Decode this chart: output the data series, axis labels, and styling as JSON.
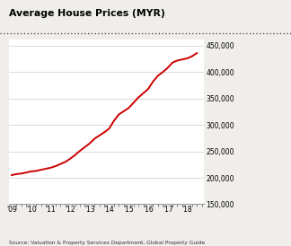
{
  "title": "Average House Prices (MYR)",
  "source_text": "Source: Valuation & Property Services Department, Global Property Guide",
  "line_color": "#cc0000",
  "background_color": "#f0eeea",
  "plot_bg_color": "#ffffff",
  "ylim": [
    150000,
    462000
  ],
  "yticks": [
    150000,
    200000,
    250000,
    300000,
    350000,
    400000,
    450000
  ],
  "years": [
    2009.0,
    2009.25,
    2009.5,
    2009.75,
    2010.0,
    2010.25,
    2010.5,
    2010.75,
    2011.0,
    2011.25,
    2011.5,
    2011.75,
    2012.0,
    2012.25,
    2012.5,
    2012.75,
    2013.0,
    2013.25,
    2013.5,
    2013.75,
    2014.0,
    2014.25,
    2014.5,
    2014.75,
    2015.0,
    2015.25,
    2015.5,
    2015.75,
    2016.0,
    2016.25,
    2016.5,
    2016.75,
    2017.0,
    2017.25,
    2017.5,
    2017.75,
    2018.0,
    2018.25,
    2018.5
  ],
  "values": [
    205000,
    207000,
    208000,
    210000,
    212000,
    213000,
    215000,
    217000,
    219000,
    222000,
    226000,
    230000,
    236000,
    243000,
    251000,
    258000,
    265000,
    274000,
    280000,
    286000,
    293000,
    308000,
    320000,
    326000,
    332000,
    342000,
    352000,
    360000,
    368000,
    382000,
    393000,
    400000,
    408000,
    418000,
    422000,
    424000,
    426000,
    430000,
    436000
  ],
  "xtick_positions": [
    2009,
    2010,
    2011,
    2012,
    2013,
    2014,
    2015,
    2016,
    2017,
    2018
  ],
  "xtick_labels": [
    "'09",
    "'10",
    "'11",
    "'12",
    "'13",
    "'14",
    "'15",
    "'16",
    "'17",
    "'18"
  ],
  "xlim": [
    2008.85,
    2018.85
  ]
}
